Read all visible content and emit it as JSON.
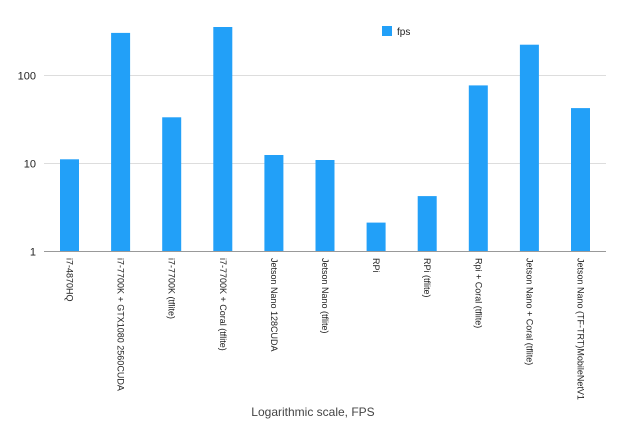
{
  "chart_data": {
    "type": "bar",
    "title": "",
    "xlabel": "Logarithmic scale, FPS",
    "ylabel": "",
    "yscale": "log",
    "ylim": [
      1,
      420
    ],
    "yticks": [
      1,
      10,
      100
    ],
    "ytick_labels": [
      "1",
      "10",
      "100"
    ],
    "grid": "horizontal",
    "legend": "top-center",
    "bar_color": "#22A0F8",
    "categories": [
      "i7-4870HQ",
      "i7-7700K + GTX1080 2560CUDA",
      "i7-7700K (tflite)",
      "i7-7700K + Coral (tflite)",
      "Jetson Nano 128CUDA",
      "Jetson Nano (tflite)",
      "RPi",
      "RPi (tflite)",
      "Rpi + Coral (tflite)",
      "Jetson Nano + Coral (tflite)",
      "Jetson Nano (TF-TRT)MobileNetV1"
    ],
    "series": [
      {
        "name": "fps",
        "values": [
          11,
          300,
          33,
          350,
          12.3,
          10.8,
          2.1,
          4.2,
          76,
          220,
          42
        ]
      }
    ]
  }
}
